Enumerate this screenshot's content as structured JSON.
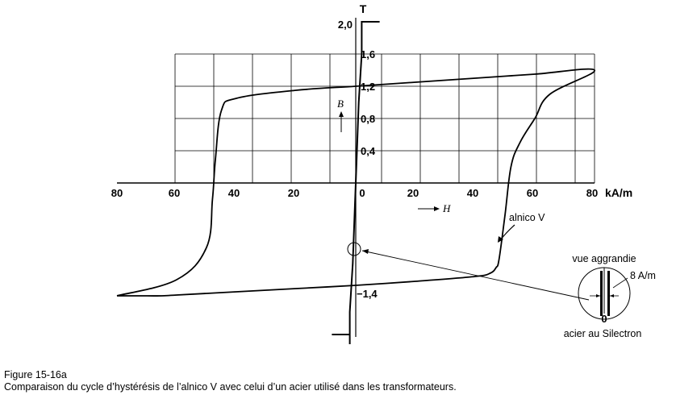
{
  "figure": {
    "unit_top": "T",
    "unit_right": "kA/m",
    "b_symbol": "B",
    "h_symbol": "H",
    "curve_label": "alnico V",
    "zoom_title": "vue aggrandie",
    "zoom_value": "8 A/m",
    "zoom_zero": "0",
    "zoom_caption": "acier au Silectron",
    "y_ticks": [
      "2,0",
      "1,6",
      "1,2",
      "0,8",
      "0,4",
      "−1,4"
    ],
    "x_ticks": [
      "80",
      "60",
      "40",
      "20",
      "0",
      "20",
      "40",
      "60",
      "80"
    ]
  },
  "caption": {
    "number": "Figure 15-16a",
    "text": "Comparaison du cycle d’hystérésis de l’alnico V avec celui d’un acier utilisé dans les transformateurs."
  },
  "chart_data": {
    "type": "line",
    "xlabel": "H",
    "ylabel": "B",
    "x_unit": "kA/m",
    "y_unit": "T",
    "xlim": [
      -80,
      80
    ],
    "ylim": [
      -2.0,
      2.0
    ],
    "series": [
      {
        "name": "alnico V",
        "x": [
          -80,
          -60,
          -50,
          -48,
          -47,
          -45,
          -40,
          -20,
          0,
          20,
          40,
          60,
          80,
          65,
          60,
          55,
          52,
          50,
          48,
          47,
          45,
          40,
          20,
          0,
          -20,
          -40,
          -60,
          -65,
          -70,
          -80
        ],
        "y": [
          -1.4,
          -1.2,
          -0.8,
          -0.2,
          0.3,
          0.9,
          1.05,
          1.15,
          1.2,
          1.25,
          1.3,
          1.35,
          1.4,
          1.1,
          0.8,
          0.5,
          0.2,
          -0.4,
          -0.95,
          -1.05,
          -1.12,
          -1.16,
          -1.22,
          -1.27,
          -1.31,
          -1.35,
          -1.39,
          -1.4,
          -1.4,
          -1.4
        ]
      },
      {
        "name": "acier au Silectron",
        "x": [
          -2,
          -2,
          -1,
          0,
          1,
          2,
          2,
          8
        ],
        "y": [
          -2.0,
          -1.6,
          -1.0,
          0,
          1.0,
          1.6,
          2.0,
          2.0
        ]
      }
    ]
  }
}
